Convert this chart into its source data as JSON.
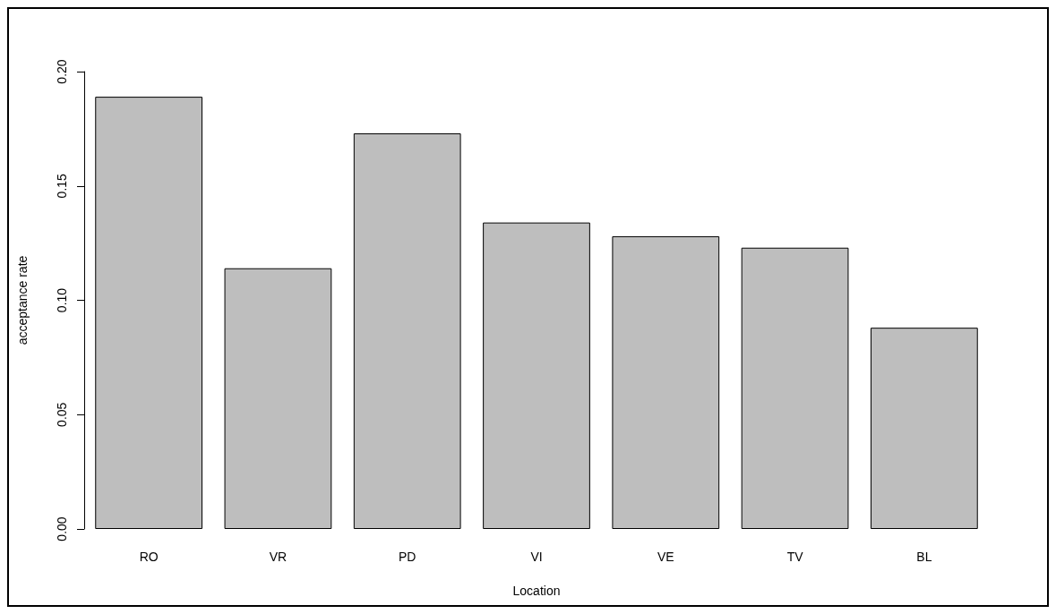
{
  "chart_data": {
    "type": "bar",
    "xlabel": "Location",
    "ylabel": "acceptance rate",
    "categories": [
      "RO",
      "VR",
      "PD",
      "VI",
      "VE",
      "TV",
      "BL"
    ],
    "values": [
      0.189,
      0.114,
      0.173,
      0.134,
      0.128,
      0.123,
      0.088
    ],
    "color": "#bebebe",
    "ylim": [
      0,
      0.2
    ],
    "yticks": [
      {
        "value": 0,
        "label": "0.00"
      },
      0.05,
      {
        "value": 0.1,
        "label": "0.10"
      },
      0.15,
      {
        "value": 0.2,
        "label": "0.20"
      }
    ],
    "grid": false
  }
}
